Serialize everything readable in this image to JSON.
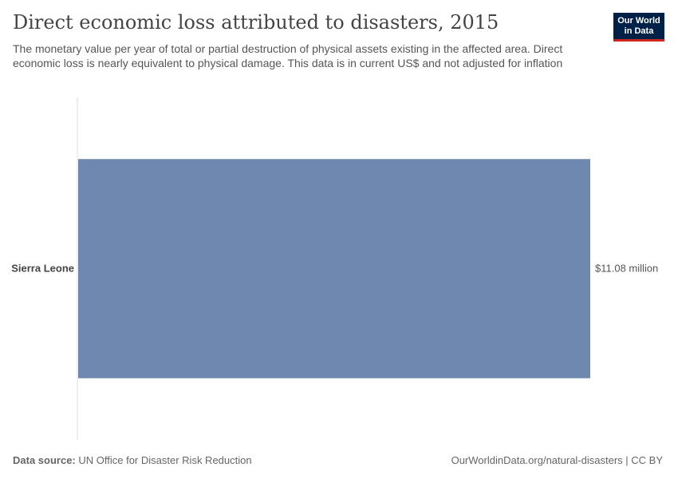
{
  "header": {
    "title": "Direct economic loss attributed to disasters, 2015",
    "subtitle": "The monetary value per year of total or partial destruction of physical assets existing in the affected area. Direct economic loss is nearly equivalent to physical damage. This data is in current US$ and not adjusted for inflation"
  },
  "logo": {
    "line1": "Our World",
    "line2": "in Data"
  },
  "footer": {
    "source_label": "Data source:",
    "source_text": "UN Office for Disaster Risk Reduction",
    "url_text": "OurWorldinData.org/natural-disasters | CC BY"
  },
  "colors": {
    "bar": "#6f88b0",
    "axis": "#dddddd",
    "label": "#444444",
    "value_label": "#555555"
  },
  "chart_data": {
    "type": "bar",
    "orientation": "horizontal",
    "title": "Direct economic loss attributed to disasters, 2015",
    "categories": [
      "Sierra Leone"
    ],
    "values": [
      11080000
    ],
    "value_labels": [
      "$11.08 million"
    ],
    "unit": "current US$",
    "xlim": [
      0,
      11080000
    ],
    "grid": false,
    "legend": "none"
  }
}
